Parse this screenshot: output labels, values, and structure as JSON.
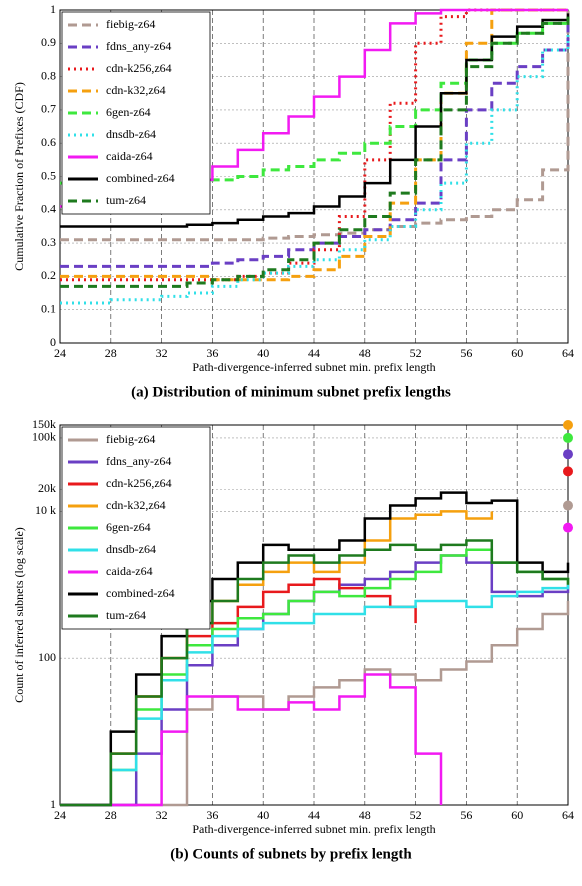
{
  "chart_data": [
    {
      "type": "line",
      "title": "(a) Distribution of minimum subnet prefix lengths",
      "x_label": "Path-divergence-inferred subnet min. prefix length",
      "y_label": "Cumulative Fraction of Prefixes (CDF)",
      "xlim": [
        24,
        64
      ],
      "xticks": [
        24,
        28,
        32,
        36,
        40,
        44,
        48,
        52,
        56,
        60,
        64
      ],
      "ylim": [
        0,
        1
      ],
      "yticks": [
        0,
        0.1,
        0.2,
        0.3,
        0.4,
        0.5,
        0.6,
        0.7,
        0.8,
        0.9,
        1
      ],
      "log_scale": false,
      "grid": true,
      "legend": "upper left",
      "x": [
        24,
        26,
        28,
        30,
        32,
        34,
        36,
        38,
        40,
        42,
        44,
        46,
        48,
        50,
        52,
        54,
        56,
        58,
        60,
        62,
        64
      ],
      "series": [
        {
          "name": "fiebig-z64",
          "color": "#b09a92",
          "dash": "dashed",
          "values": [
            0.31,
            0.31,
            0.31,
            0.31,
            0.31,
            0.31,
            0.31,
            0.31,
            0.315,
            0.32,
            0.325,
            0.33,
            0.34,
            0.35,
            0.36,
            0.37,
            0.38,
            0.4,
            0.43,
            0.52,
            1
          ]
        },
        {
          "name": "fdns_any-z64",
          "color": "#6a3fc4",
          "dash": "dashed",
          "values": [
            0.23,
            0.23,
            0.23,
            0.23,
            0.23,
            0.23,
            0.24,
            0.25,
            0.26,
            0.28,
            0.3,
            0.32,
            0.34,
            0.37,
            0.42,
            0.55,
            0.7,
            0.78,
            0.83,
            0.88,
            0.96
          ]
        },
        {
          "name": "cdn-k256,z64",
          "color": "#e8191c",
          "dash": "dotted",
          "values": [
            0.19,
            0.19,
            0.19,
            0.19,
            0.19,
            0.19,
            0.19,
            0.2,
            0.21,
            0.24,
            0.28,
            0.38,
            0.55,
            0.72,
            0.9,
            0.98,
            1,
            1,
            1,
            1,
            1
          ]
        },
        {
          "name": "cdn-k32,z64",
          "color": "#f5a00f",
          "dash": "dashed",
          "values": [
            0.2,
            0.2,
            0.2,
            0.2,
            0.2,
            0.2,
            0.19,
            0.19,
            0.19,
            0.2,
            0.22,
            0.26,
            0.32,
            0.42,
            0.55,
            0.75,
            0.9,
            1,
            1,
            1,
            1
          ]
        },
        {
          "name": "6gen-z64",
          "color": "#3ee83e",
          "dash": "dashed",
          "values": [
            0.48,
            0.48,
            0.48,
            0.48,
            0.48,
            0.48,
            0.49,
            0.5,
            0.52,
            0.53,
            0.55,
            0.57,
            0.6,
            0.65,
            0.7,
            0.78,
            0.85,
            0.9,
            0.93,
            0.96,
            0.98
          ]
        },
        {
          "name": "dnsdb-z64",
          "color": "#30e0e8",
          "dash": "dotted",
          "values": [
            0.12,
            0.12,
            0.13,
            0.13,
            0.14,
            0.15,
            0.17,
            0.19,
            0.21,
            0.23,
            0.25,
            0.28,
            0.31,
            0.35,
            0.4,
            0.48,
            0.6,
            0.7,
            0.8,
            0.88,
            0.93
          ]
        },
        {
          "name": "caida-z64",
          "color": "#f21af2",
          "dash": "solid",
          "values": [
            0.41,
            0.41,
            0.42,
            0.43,
            0.45,
            0.49,
            0.53,
            0.58,
            0.63,
            0.68,
            0.74,
            0.8,
            0.88,
            0.96,
            0.99,
            1,
            1,
            1,
            1,
            1,
            1
          ]
        },
        {
          "name": "combined-z64",
          "color": "#000000",
          "dash": "solid",
          "values": [
            0.35,
            0.35,
            0.35,
            0.35,
            0.35,
            0.355,
            0.36,
            0.37,
            0.38,
            0.39,
            0.41,
            0.44,
            0.48,
            0.55,
            0.65,
            0.75,
            0.85,
            0.92,
            0.95,
            0.97,
            0.99
          ]
        },
        {
          "name": "tum-z64",
          "color": "#1e7a1e",
          "dash": "dashed",
          "values": [
            0.17,
            0.17,
            0.17,
            0.17,
            0.17,
            0.18,
            0.19,
            0.2,
            0.22,
            0.25,
            0.3,
            0.34,
            0.38,
            0.45,
            0.55,
            0.7,
            0.83,
            0.9,
            0.93,
            0.96,
            0.98
          ]
        }
      ]
    },
    {
      "type": "line",
      "title": "(b) Counts of subnets by prefix length",
      "x_label": "Path-divergence-inferred subnet min. prefix length",
      "y_label": "Count of inferred subnets (log scale)",
      "xlim": [
        24,
        64
      ],
      "xticks": [
        24,
        28,
        32,
        36,
        40,
        44,
        48,
        52,
        56,
        60,
        64
      ],
      "ylim": [
        1,
        150000
      ],
      "yticks": [
        1,
        100,
        {
          "value": 10000,
          "label": "10 k"
        },
        {
          "value": 20000,
          "label": "20k"
        },
        {
          "value": 100000,
          "label": "100k"
        },
        {
          "value": 150000,
          "label": "150k"
        }
      ],
      "log_scale": true,
      "grid": true,
      "legend": "upper left",
      "x": [
        24,
        26,
        28,
        30,
        32,
        34,
        36,
        38,
        40,
        42,
        44,
        46,
        48,
        50,
        52,
        54,
        56,
        58,
        60,
        62,
        64
      ],
      "series": [
        {
          "name": "fiebig-z64",
          "color": "#b09a92",
          "dash": "solid",
          "values": [
            1,
            1,
            1,
            1,
            1,
            20,
            30,
            30,
            20,
            30,
            40,
            50,
            70,
            60,
            50,
            70,
            90,
            150,
            250,
            400,
            600
          ]
        },
        {
          "name": "fdns_any-z64",
          "color": "#6a3fc4",
          "dash": "solid",
          "values": [
            1,
            1,
            1,
            5,
            20,
            80,
            150,
            250,
            400,
            600,
            800,
            1000,
            1200,
            1500,
            2000,
            2500,
            2000,
            800,
            700,
            800,
            1000
          ]
        },
        {
          "name": "cdn-k256,z64",
          "color": "#e8191c",
          "dash": "solid",
          "values": [
            1,
            1,
            5,
            30,
            100,
            200,
            300,
            500,
            800,
            1000,
            1200,
            900,
            700,
            500,
            300,
            null,
            null,
            null,
            null,
            null,
            null
          ]
        },
        {
          "name": "cdn-k32,z64",
          "color": "#f5a00f",
          "dash": "solid",
          "values": [
            1,
            1,
            5,
            30,
            100,
            300,
            600,
            1000,
            1500,
            2000,
            1500,
            2000,
            4000,
            8000,
            9000,
            10000,
            8000,
            10000,
            null,
            null,
            null
          ]
        },
        {
          "name": "6gen-z64",
          "color": "#3ee83e",
          "dash": "solid",
          "values": [
            1,
            1,
            3,
            20,
            60,
            150,
            250,
            350,
            400,
            600,
            800,
            700,
            900,
            1200,
            1500,
            2500,
            3000,
            2000,
            1500,
            1200,
            1000
          ]
        },
        {
          "name": "dnsdb-z64",
          "color": "#30e0e8",
          "dash": "solid",
          "values": [
            1,
            1,
            3,
            15,
            50,
            120,
            200,
            250,
            300,
            300,
            400,
            400,
            500,
            500,
            600,
            600,
            500,
            700,
            800,
            900,
            1000
          ]
        },
        {
          "name": "caida-z64",
          "color": "#f21af2",
          "dash": "solid",
          "values": [
            1,
            1,
            1,
            1,
            10,
            30,
            30,
            20,
            20,
            25,
            20,
            30,
            60,
            40,
            5,
            1,
            null,
            null,
            null,
            null,
            null
          ]
        },
        {
          "name": "combined-z64",
          "color": "#000000",
          "dash": "solid",
          "values": [
            1,
            1,
            10,
            60,
            200,
            600,
            1200,
            2000,
            3500,
            3000,
            3000,
            4000,
            8000,
            12000,
            15000,
            18000,
            13000,
            14000,
            2000,
            1500,
            2000
          ]
        },
        {
          "name": "tum-z64",
          "color": "#1e7a1e",
          "dash": "solid",
          "values": [
            1,
            1,
            5,
            30,
            100,
            300,
            600,
            1200,
            2000,
            2500,
            2000,
            2500,
            3000,
            3500,
            3000,
            3500,
            4000,
            2000,
            1500,
            1200,
            1000
          ]
        }
      ],
      "end_markers": [
        {
          "color": "#f5a00f",
          "value": 150000
        },
        {
          "color": "#3ee83e",
          "value": 100000
        },
        {
          "color": "#6a3fc4",
          "value": 60000
        },
        {
          "color": "#e8191c",
          "value": 35000
        },
        {
          "color": "#b09a92",
          "value": 12000
        },
        {
          "color": "#f21af2",
          "value": 6000
        }
      ]
    }
  ]
}
